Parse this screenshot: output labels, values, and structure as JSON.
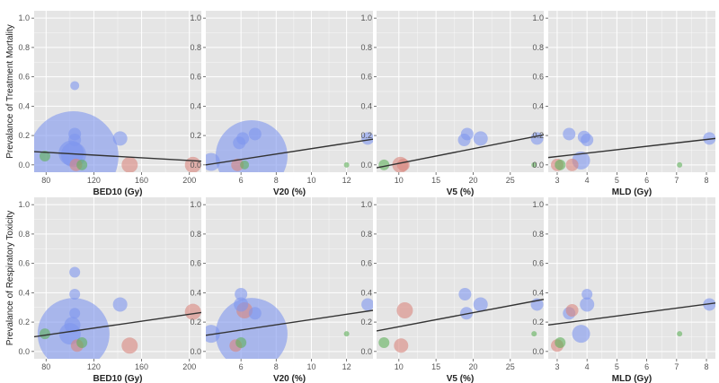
{
  "colors": {
    "panel_bg": "#e5e5e5",
    "grid": "#ffffff",
    "trend_line": "#333333",
    "blue_bubble": "#7f96ee",
    "red_bubble": "#d9857d",
    "green_bubble": "#5fb15a"
  },
  "chart_data": [
    {
      "type": "scatter",
      "row": 0,
      "col": 0,
      "ylabel": "Prevalance of Treatment Mortality",
      "xlabel": "BED10 (Gy)",
      "xlim": [
        70,
        210
      ],
      "ylim": [
        -0.05,
        1.05
      ],
      "xticks": [
        80,
        120,
        160,
        200
      ],
      "yticks": [
        0.0,
        0.2,
        0.4,
        0.6,
        0.8,
        1.0
      ],
      "grid": true,
      "trend": [
        [
          70,
          0.09
        ],
        [
          210,
          0.025
        ]
      ],
      "points": [
        {
          "x": 101,
          "y": 0.08,
          "size": 14,
          "group": "blue"
        },
        {
          "x": 103,
          "y": 0.07,
          "size": 14,
          "group": "blue"
        },
        {
          "x": 104,
          "y": 0.54,
          "size": 5,
          "group": "blue"
        },
        {
          "x": 104,
          "y": 0.21,
          "size": 7,
          "group": "blue"
        },
        {
          "x": 104,
          "y": 0.17,
          "size": 7,
          "group": "blue"
        },
        {
          "x": 103,
          "y": 0.06,
          "size": 50,
          "group": "blue"
        },
        {
          "x": 142,
          "y": 0.18,
          "size": 8,
          "group": "blue"
        },
        {
          "x": 79,
          "y": 0.06,
          "size": 6,
          "group": "green"
        },
        {
          "x": 110,
          "y": 0.0,
          "size": 6,
          "group": "green"
        },
        {
          "x": 105,
          "y": 0.0,
          "size": 7,
          "group": "red"
        },
        {
          "x": 150,
          "y": 0.0,
          "size": 9,
          "group": "red"
        },
        {
          "x": 203,
          "y": 0.0,
          "size": 9,
          "group": "red"
        }
      ]
    },
    {
      "type": "scatter",
      "row": 0,
      "col": 1,
      "ylabel": "",
      "xlabel": "V20 (%)",
      "xlim": [
        4,
        13.5
      ],
      "ylim": [
        -0.05,
        1.05
      ],
      "xticks": [
        6,
        8,
        10,
        12
      ],
      "yticks": [
        0.0,
        0.2,
        0.4,
        0.6,
        0.8,
        1.0
      ],
      "grid": true,
      "trend": [
        [
          4,
          0.0
        ],
        [
          13.5,
          0.175
        ]
      ],
      "points": [
        {
          "x": 4.3,
          "y": 0.02,
          "size": 10,
          "group": "blue"
        },
        {
          "x": 6.1,
          "y": 0.18,
          "size": 7,
          "group": "blue"
        },
        {
          "x": 5.9,
          "y": 0.15,
          "size": 7,
          "group": "blue"
        },
        {
          "x": 6.8,
          "y": 0.21,
          "size": 7,
          "group": "blue"
        },
        {
          "x": 6.6,
          "y": 0.06,
          "size": 40,
          "group": "blue"
        },
        {
          "x": 13.2,
          "y": 0.18,
          "size": 7,
          "group": "blue"
        },
        {
          "x": 5.8,
          "y": 0.0,
          "size": 7,
          "group": "red"
        },
        {
          "x": 6.2,
          "y": 0.0,
          "size": 5,
          "group": "green"
        },
        {
          "x": 12.0,
          "y": 0.0,
          "size": 3,
          "group": "green"
        }
      ]
    },
    {
      "type": "scatter",
      "row": 0,
      "col": 2,
      "ylabel": "",
      "xlabel": "V5 (%)",
      "xlim": [
        7,
        29.5
      ],
      "ylim": [
        -0.05,
        1.05
      ],
      "xticks": [
        10,
        15,
        20,
        25
      ],
      "yticks": [
        0.0,
        0.2,
        0.4,
        0.6,
        0.8,
        1.0
      ],
      "grid": true,
      "trend": [
        [
          7,
          -0.02
        ],
        [
          29.5,
          0.205
        ]
      ],
      "points": [
        {
          "x": 18.8,
          "y": 0.17,
          "size": 7,
          "group": "blue"
        },
        {
          "x": 19.2,
          "y": 0.21,
          "size": 7,
          "group": "blue"
        },
        {
          "x": 21.0,
          "y": 0.18,
          "size": 8,
          "group": "blue"
        },
        {
          "x": 28.6,
          "y": 0.18,
          "size": 7,
          "group": "blue"
        },
        {
          "x": 10.2,
          "y": 0.0,
          "size": 9,
          "group": "red"
        },
        {
          "x": 10.6,
          "y": 0.0,
          "size": 7,
          "group": "red"
        },
        {
          "x": 8.0,
          "y": 0.0,
          "size": 6,
          "group": "green"
        },
        {
          "x": 28.2,
          "y": 0.0,
          "size": 3,
          "group": "green"
        }
      ]
    },
    {
      "type": "scatter",
      "row": 0,
      "col": 3,
      "ylabel": "",
      "xlabel": "MLD (Gy)",
      "xlim": [
        2.7,
        8.3
      ],
      "ylim": [
        -0.05,
        1.05
      ],
      "xticks": [
        3,
        4,
        5,
        6,
        7,
        8
      ],
      "yticks": [
        0.0,
        0.2,
        0.4,
        0.6,
        0.8,
        1.0
      ],
      "grid": true,
      "trend": [
        [
          2.7,
          0.05
        ],
        [
          8.3,
          0.18
        ]
      ],
      "points": [
        {
          "x": 3.4,
          "y": 0.21,
          "size": 7,
          "group": "blue"
        },
        {
          "x": 3.9,
          "y": 0.19,
          "size": 7,
          "group": "blue"
        },
        {
          "x": 4.0,
          "y": 0.17,
          "size": 7,
          "group": "blue"
        },
        {
          "x": 3.8,
          "y": 0.03,
          "size": 10,
          "group": "blue"
        },
        {
          "x": 8.1,
          "y": 0.18,
          "size": 7,
          "group": "blue"
        },
        {
          "x": 3.0,
          "y": 0.0,
          "size": 7,
          "group": "red"
        },
        {
          "x": 3.5,
          "y": 0.0,
          "size": 7,
          "group": "red"
        },
        {
          "x": 3.1,
          "y": 0.0,
          "size": 6,
          "group": "green"
        },
        {
          "x": 7.1,
          "y": 0.0,
          "size": 3,
          "group": "green"
        }
      ]
    },
    {
      "type": "scatter",
      "row": 1,
      "col": 0,
      "ylabel": "Prevalance of Respiratory Toxicity",
      "xlabel": "BED10 (Gy)",
      "xlim": [
        70,
        210
      ],
      "ylim": [
        -0.05,
        1.05
      ],
      "xticks": [
        80,
        120,
        160,
        200
      ],
      "yticks": [
        0.0,
        0.2,
        0.4,
        0.6,
        0.8,
        1.0
      ],
      "grid": true,
      "trend": [
        [
          70,
          0.1
        ],
        [
          210,
          0.265
        ]
      ],
      "points": [
        {
          "x": 104,
          "y": 0.54,
          "size": 6,
          "group": "blue"
        },
        {
          "x": 104,
          "y": 0.39,
          "size": 6,
          "group": "blue"
        },
        {
          "x": 104,
          "y": 0.26,
          "size": 6,
          "group": "blue"
        },
        {
          "x": 102,
          "y": 0.18,
          "size": 9,
          "group": "blue"
        },
        {
          "x": 100,
          "y": 0.12,
          "size": 12,
          "group": "blue"
        },
        {
          "x": 103,
          "y": 0.12,
          "size": 40,
          "group": "blue"
        },
        {
          "x": 142,
          "y": 0.32,
          "size": 8,
          "group": "blue"
        },
        {
          "x": 79,
          "y": 0.12,
          "size": 6,
          "group": "green"
        },
        {
          "x": 110,
          "y": 0.06,
          "size": 6,
          "group": "green"
        },
        {
          "x": 106,
          "y": 0.04,
          "size": 7,
          "group": "red"
        },
        {
          "x": 150,
          "y": 0.04,
          "size": 9,
          "group": "red"
        },
        {
          "x": 203,
          "y": 0.27,
          "size": 9,
          "group": "red"
        }
      ]
    },
    {
      "type": "scatter",
      "row": 1,
      "col": 1,
      "ylabel": "",
      "xlabel": "V20 (%)",
      "xlim": [
        4,
        13.5
      ],
      "ylim": [
        -0.05,
        1.05
      ],
      "xticks": [
        6,
        8,
        10,
        12
      ],
      "yticks": [
        0.0,
        0.2,
        0.4,
        0.6,
        0.8,
        1.0
      ],
      "grid": true,
      "trend": [
        [
          4,
          0.11
        ],
        [
          13.5,
          0.28
        ]
      ],
      "points": [
        {
          "x": 4.3,
          "y": 0.12,
          "size": 10,
          "group": "blue"
        },
        {
          "x": 6.0,
          "y": 0.39,
          "size": 7,
          "group": "blue"
        },
        {
          "x": 6.0,
          "y": 0.32,
          "size": 8,
          "group": "blue"
        },
        {
          "x": 6.8,
          "y": 0.26,
          "size": 7,
          "group": "blue"
        },
        {
          "x": 6.6,
          "y": 0.12,
          "size": 40,
          "group": "blue"
        },
        {
          "x": 13.2,
          "y": 0.32,
          "size": 7,
          "group": "blue"
        },
        {
          "x": 6.2,
          "y": 0.28,
          "size": 9,
          "group": "red"
        },
        {
          "x": 5.7,
          "y": 0.04,
          "size": 7,
          "group": "red"
        },
        {
          "x": 6.0,
          "y": 0.06,
          "size": 6,
          "group": "green"
        },
        {
          "x": 12.0,
          "y": 0.12,
          "size": 3,
          "group": "green"
        }
      ]
    },
    {
      "type": "scatter",
      "row": 1,
      "col": 2,
      "ylabel": "",
      "xlabel": "V5 (%)",
      "xlim": [
        7,
        29.5
      ],
      "ylim": [
        -0.05,
        1.05
      ],
      "xticks": [
        10,
        15,
        20,
        25
      ],
      "yticks": [
        0.0,
        0.2,
        0.4,
        0.6,
        0.8,
        1.0
      ],
      "grid": true,
      "trend": [
        [
          7,
          0.14
        ],
        [
          29.5,
          0.355
        ]
      ],
      "points": [
        {
          "x": 18.9,
          "y": 0.39,
          "size": 7,
          "group": "blue"
        },
        {
          "x": 19.1,
          "y": 0.26,
          "size": 7,
          "group": "blue"
        },
        {
          "x": 21.0,
          "y": 0.32,
          "size": 8,
          "group": "blue"
        },
        {
          "x": 28.6,
          "y": 0.32,
          "size": 7,
          "group": "blue"
        },
        {
          "x": 10.8,
          "y": 0.28,
          "size": 9,
          "group": "red"
        },
        {
          "x": 10.3,
          "y": 0.04,
          "size": 8,
          "group": "red"
        },
        {
          "x": 8.0,
          "y": 0.06,
          "size": 6,
          "group": "green"
        },
        {
          "x": 28.2,
          "y": 0.12,
          "size": 3,
          "group": "green"
        }
      ]
    },
    {
      "type": "scatter",
      "row": 1,
      "col": 3,
      "ylabel": "",
      "xlabel": "MLD (Gy)",
      "xlim": [
        2.7,
        8.3
      ],
      "ylim": [
        -0.05,
        1.05
      ],
      "xticks": [
        3,
        4,
        5,
        6,
        7,
        8
      ],
      "yticks": [
        0.0,
        0.2,
        0.4,
        0.6,
        0.8,
        1.0
      ],
      "grid": true,
      "trend": [
        [
          2.7,
          0.18
        ],
        [
          8.3,
          0.33
        ]
      ],
      "points": [
        {
          "x": 4.0,
          "y": 0.39,
          "size": 6,
          "group": "blue"
        },
        {
          "x": 4.0,
          "y": 0.32,
          "size": 8,
          "group": "blue"
        },
        {
          "x": 3.4,
          "y": 0.26,
          "size": 7,
          "group": "blue"
        },
        {
          "x": 3.8,
          "y": 0.12,
          "size": 10,
          "group": "blue"
        },
        {
          "x": 8.1,
          "y": 0.32,
          "size": 7,
          "group": "blue"
        },
        {
          "x": 3.5,
          "y": 0.28,
          "size": 7,
          "group": "red"
        },
        {
          "x": 3.0,
          "y": 0.04,
          "size": 7,
          "group": "red"
        },
        {
          "x": 3.1,
          "y": 0.06,
          "size": 6,
          "group": "green"
        },
        {
          "x": 7.1,
          "y": 0.12,
          "size": 3,
          "group": "green"
        }
      ]
    }
  ]
}
